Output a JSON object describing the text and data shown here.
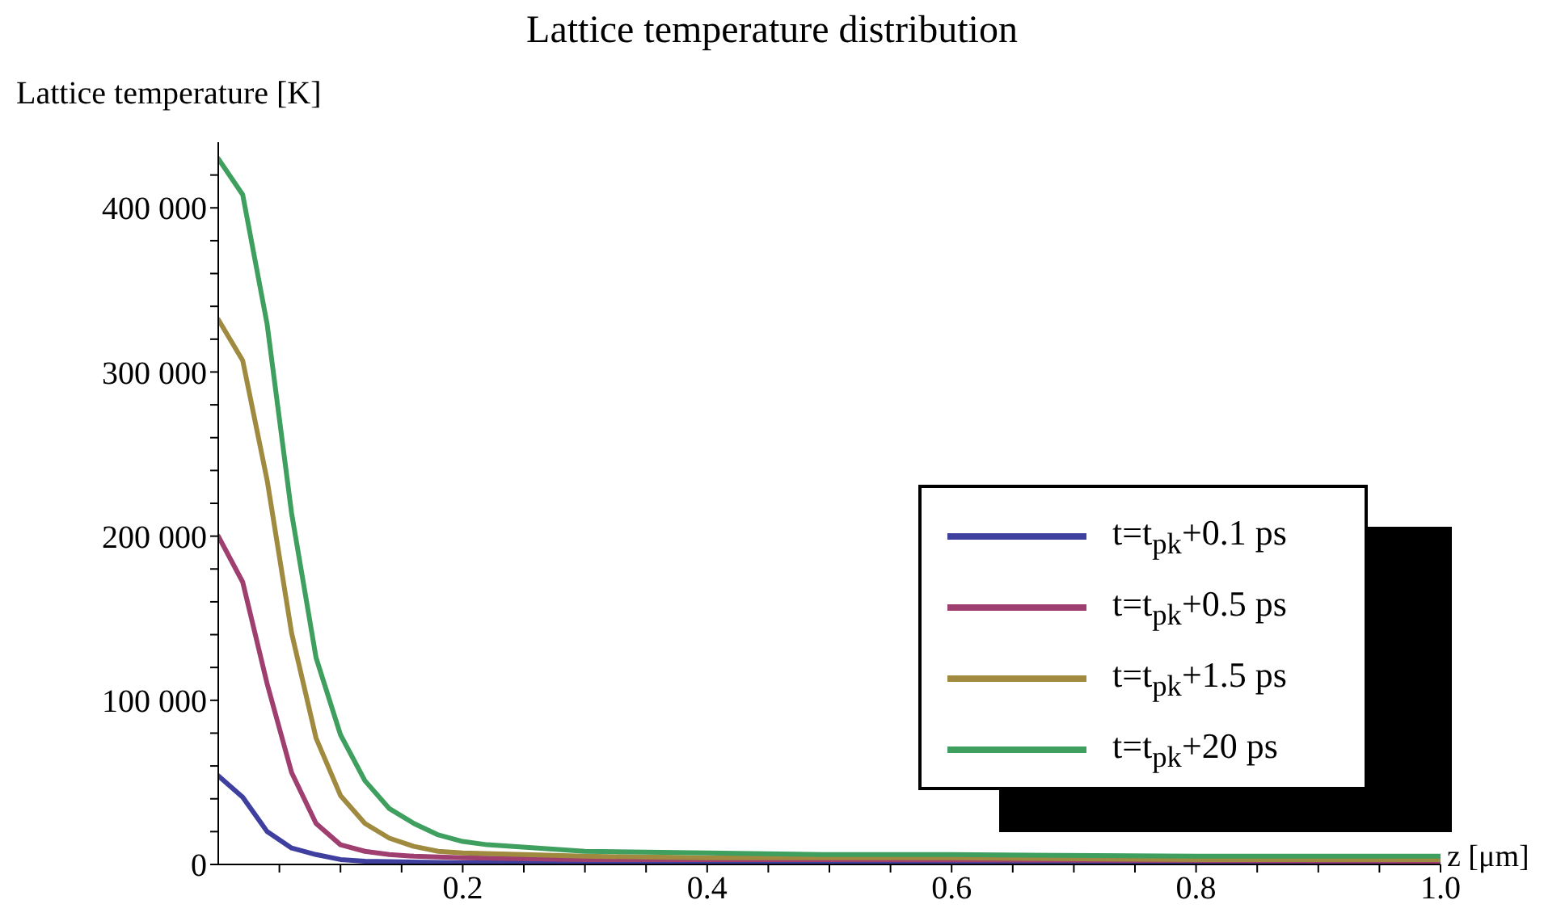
{
  "chart_data": {
    "type": "line",
    "title": "Lattice temperature distribution",
    "xlabel": "z [μm]",
    "ylabel": "Lattice temperature [K]",
    "xlim": [
      0,
      1
    ],
    "ylim": [
      0,
      440000
    ],
    "xticks": [
      {
        "value": 0.05,
        "label": null
      },
      {
        "value": 0.1,
        "label": null
      },
      {
        "value": 0.15,
        "label": null
      },
      0.2,
      {
        "value": 0.25,
        "label": null
      },
      {
        "value": 0.3,
        "label": null
      },
      {
        "value": 0.35,
        "label": null
      },
      0.4,
      {
        "value": 0.45,
        "label": null
      },
      {
        "value": 0.5,
        "label": null
      },
      {
        "value": 0.55,
        "label": null
      },
      0.6,
      {
        "value": 0.65,
        "label": null
      },
      {
        "value": 0.7,
        "label": null
      },
      {
        "value": 0.75,
        "label": null
      },
      0.8,
      {
        "value": 0.85,
        "label": null
      },
      {
        "value": 0.9,
        "label": null
      },
      {
        "value": 0.95,
        "label": null
      },
      {
        "value": 1.0,
        "label": "1.0"
      }
    ],
    "yticks": [
      0,
      {
        "value": 20000,
        "label": null
      },
      {
        "value": 40000,
        "label": null
      },
      {
        "value": 60000,
        "label": null
      },
      {
        "value": 80000,
        "label": null
      },
      {
        "value": 100000,
        "label": "100 000"
      },
      {
        "value": 120000,
        "label": null
      },
      {
        "value": 140000,
        "label": null
      },
      {
        "value": 160000,
        "label": null
      },
      {
        "value": 180000,
        "label": null
      },
      {
        "value": 200000,
        "label": "200 000"
      },
      {
        "value": 220000,
        "label": null
      },
      {
        "value": 240000,
        "label": null
      },
      {
        "value": 260000,
        "label": null
      },
      {
        "value": 280000,
        "label": null
      },
      {
        "value": 300000,
        "label": "300 000"
      },
      {
        "value": 320000,
        "label": null
      },
      {
        "value": 340000,
        "label": null
      },
      {
        "value": 360000,
        "label": null
      },
      {
        "value": 380000,
        "label": null
      },
      {
        "value": 400000,
        "label": "400 000"
      },
      {
        "value": 420000,
        "label": null
      }
    ],
    "legend": "right",
    "marker": "none",
    "line_style": "solid",
    "series": [
      {
        "name": "t=t$_{pk}$+0.1 ps",
        "color": "#3f3f9f",
        "x": [
          0,
          0.02,
          0.04,
          0.06,
          0.08,
          0.1,
          0.12,
          0.2,
          0.4,
          1.0
        ],
        "values": [
          54000,
          41000,
          20000,
          10000,
          6000,
          3000,
          2000,
          1000,
          1000,
          0
        ]
      },
      {
        "name": "t=t$_{pk}$+0.5 ps",
        "color": "#9f3f6f",
        "x": [
          0,
          0.02,
          0.04,
          0.06,
          0.08,
          0.1,
          0.12,
          0.14,
          0.16,
          0.2,
          0.3,
          0.5,
          1.0
        ],
        "values": [
          200000,
          172000,
          110000,
          56000,
          25000,
          12000,
          8000,
          6000,
          5000,
          4000,
          3000,
          3000,
          2000
        ]
      },
      {
        "name": "t=t$_{pk}$+1.5 ps",
        "color": "#9f8a3f",
        "x": [
          0,
          0.02,
          0.04,
          0.06,
          0.08,
          0.1,
          0.12,
          0.14,
          0.16,
          0.18,
          0.2,
          0.3,
          0.4,
          0.6,
          0.8,
          1.0
        ],
        "values": [
          332000,
          307000,
          234000,
          141000,
          77000,
          42000,
          25000,
          16000,
          11000,
          8000,
          7000,
          5000,
          4000,
          4000,
          3000,
          3000
        ]
      },
      {
        "name": "t=t$_{pk}$+20 ps",
        "color": "#3f9f5f",
        "x": [
          0,
          0.02,
          0.04,
          0.06,
          0.08,
          0.1,
          0.12,
          0.14,
          0.16,
          0.18,
          0.2,
          0.22,
          0.3,
          0.4,
          0.5,
          0.6,
          0.8,
          1.0
        ],
        "values": [
          430000,
          408000,
          329000,
          214000,
          126000,
          79000,
          51000,
          34000,
          25000,
          18000,
          14000,
          12000,
          8000,
          7000,
          6000,
          6000,
          5000,
          5000
        ]
      }
    ]
  }
}
